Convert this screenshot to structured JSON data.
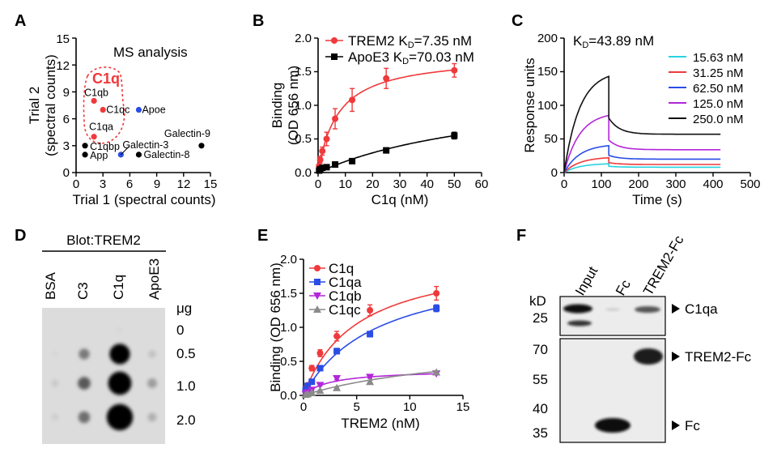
{
  "figure": {
    "panel_labels": [
      "A",
      "B",
      "C",
      "D",
      "E",
      "F"
    ]
  },
  "chart_data": [
    {
      "panel": "A",
      "type": "scatter",
      "title": "MS analysis",
      "xlabel": "Trial 1 (spectral counts)",
      "ylabel_line1": "Trial 2",
      "ylabel_line2": "(spectral counts)",
      "xlim": [
        0,
        15
      ],
      "ylim": [
        0,
        15
      ],
      "xticks": [
        "0",
        "3",
        "6",
        "9",
        "12",
        "15"
      ],
      "yticks": [
        "0",
        "3",
        "6",
        "9",
        "12",
        "15"
      ],
      "highlight_label": "C1q",
      "points": [
        {
          "label": "C1qb",
          "x": 2,
          "y": 8,
          "color": "#f0393b"
        },
        {
          "label": "C1qc",
          "x": 3,
          "y": 7,
          "color": "#f0393b"
        },
        {
          "label": "C1qa",
          "x": 2,
          "y": 4,
          "color": "#f0393b"
        },
        {
          "label": "Apoe",
          "x": 7,
          "y": 7,
          "color": "#2a4de6"
        },
        {
          "label": "Galectin-3",
          "x": 5,
          "y": 2,
          "color": "#2a4de6"
        },
        {
          "label": "C1qbp",
          "x": 1,
          "y": 3,
          "color": "#000000"
        },
        {
          "label": "App",
          "x": 1,
          "y": 2,
          "color": "#000000"
        },
        {
          "label": "Galectin-8",
          "x": 7,
          "y": 2,
          "color": "#000000"
        },
        {
          "label": "Galectin-9",
          "x": 14,
          "y": 3,
          "color": "#000000"
        }
      ]
    },
    {
      "panel": "B",
      "type": "line",
      "xlabel": "C1q (nM)",
      "ylabel_line1": "Binding",
      "ylabel_line2": "(OD 656 nm)",
      "xlim": [
        0,
        60
      ],
      "ylim": [
        0,
        2.0
      ],
      "xticks": [
        "0",
        "10",
        "20",
        "30",
        "40",
        "50",
        "60"
      ],
      "yticks": [
        "0.0",
        "0.5",
        "1.0",
        "1.5",
        "2.0"
      ],
      "series": [
        {
          "name": "TREM2",
          "kd_text": "K",
          "kd_sub": "D",
          "kd_value": "=7.35 nM",
          "color": "#f0393b",
          "marker": "circle",
          "x": [
            0.39,
            0.78,
            1.56,
            3.13,
            6.25,
            12.5,
            25,
            50
          ],
          "y": [
            0.1,
            0.19,
            0.32,
            0.5,
            0.8,
            1.08,
            1.4,
            1.52
          ],
          "err": [
            0.03,
            0.05,
            0.06,
            0.1,
            0.15,
            0.17,
            0.15,
            0.1
          ],
          "bmax": 1.75,
          "kd": 7.35
        },
        {
          "name": "ApoE3",
          "kd_text": "K",
          "kd_sub": "D",
          "kd_value": "=70.03 nM",
          "color": "#000000",
          "marker": "square",
          "x": [
            0.39,
            0.78,
            1.56,
            3.13,
            6.25,
            12.5,
            25,
            50
          ],
          "y": [
            0.03,
            0.05,
            0.07,
            0.08,
            0.12,
            0.17,
            0.33,
            0.55
          ],
          "err": [
            0.01,
            0.01,
            0.01,
            0.01,
            0.02,
            0.02,
            0.03,
            0.05
          ],
          "bmax": 1.32,
          "kd": 70.03
        }
      ]
    },
    {
      "panel": "C",
      "type": "line",
      "annotation_k": "K",
      "annotation_sub": "D",
      "annotation_value": "=43.89 nM",
      "xlabel": "Time (s)",
      "ylabel": "Response units",
      "xlim": [
        0,
        500
      ],
      "ylim": [
        0,
        200
      ],
      "xticks": [
        "0",
        "100",
        "200",
        "300",
        "400",
        "500"
      ],
      "yticks": [
        "0",
        "50",
        "100",
        "150",
        "200"
      ],
      "assoc_end": 120,
      "t_end": 420,
      "series": [
        {
          "name": "15.63 nM",
          "color": "#27d3e0",
          "peak": 13,
          "end": 8
        },
        {
          "name": "31.25 nM",
          "color": "#f0393b",
          "peak": 22,
          "end": 12
        },
        {
          "name": "62.50 nM",
          "color": "#2a4de6",
          "peak": 40,
          "end": 20
        },
        {
          "name": "125.0 nM",
          "color": "#b326d9",
          "peak": 85,
          "end": 34
        },
        {
          "name": "250.0 nM",
          "color": "#111111",
          "peak": 143,
          "end": 57
        }
      ]
    },
    {
      "panel": "D",
      "type": "blot",
      "header": "Blot",
      "header_colon": ":",
      "header_target": "TREM2",
      "columns": [
        "BSA",
        "C3",
        "C1q",
        "ApoE3"
      ],
      "unit": "μg",
      "rows": [
        "0",
        "0.5",
        "1.0",
        "2.0"
      ],
      "intensity": [
        [
          0.0,
          0.0,
          0.02,
          0.0
        ],
        [
          0.03,
          0.45,
          0.98,
          0.12
        ],
        [
          0.08,
          0.6,
          1.0,
          0.28
        ],
        [
          0.06,
          0.5,
          1.0,
          0.2
        ]
      ],
      "sizes": [
        [
          0,
          0,
          0.4,
          0
        ],
        [
          0.3,
          0.55,
          1.05,
          0.4
        ],
        [
          0.4,
          0.65,
          1.2,
          0.5
        ],
        [
          0.4,
          0.6,
          1.35,
          0.45
        ]
      ]
    },
    {
      "panel": "E",
      "type": "line",
      "xlabel": "TREM2 (nM)",
      "ylabel": "Binding (OD 656 nm)",
      "xlim": [
        0,
        15
      ],
      "ylim": [
        0,
        2.0
      ],
      "xticks": [
        "0",
        "5",
        "10",
        "15"
      ],
      "yticks": [
        "0.0",
        "0.5",
        "1.0",
        "1.5",
        "2.0"
      ],
      "series": [
        {
          "name": "C1q",
          "color": "#f0393b",
          "marker": "circle",
          "x": [
            0.2,
            0.39,
            0.78,
            1.56,
            3.13,
            6.25,
            12.5
          ],
          "y": [
            0.1,
            0.15,
            0.4,
            0.62,
            0.87,
            1.25,
            1.5
          ],
          "err": [
            0.02,
            0.02,
            0.04,
            0.05,
            0.07,
            0.08,
            0.1
          ],
          "bmax": 2.1,
          "kd": 5.0
        },
        {
          "name": "C1qa",
          "color": "#2a4de6",
          "marker": "square",
          "x": [
            0.2,
            0.39,
            0.78,
            1.56,
            3.13,
            6.25,
            12.5
          ],
          "y": [
            0.08,
            0.14,
            0.2,
            0.4,
            0.65,
            0.9,
            1.28
          ],
          "err": [
            0.01,
            0.01,
            0.02,
            0.03,
            0.04,
            0.04,
            0.05
          ],
          "bmax": 2.0,
          "kd": 7.0
        },
        {
          "name": "C1qb",
          "color": "#b326d9",
          "marker": "triangle-down",
          "x": [
            0.2,
            0.39,
            0.78,
            1.56,
            3.13,
            6.25,
            12.5
          ],
          "y": [
            0.02,
            0.04,
            0.08,
            0.15,
            0.25,
            0.27,
            0.32
          ],
          "err": [
            0.01,
            0.01,
            0.01,
            0.01,
            0.02,
            0.02,
            0.02
          ],
          "bmax": 0.38,
          "kd": 2.5
        },
        {
          "name": "C1qc",
          "color": "#8a8a8a",
          "marker": "triangle-up",
          "x": [
            0.2,
            0.39,
            0.78,
            1.56,
            3.13,
            6.25,
            12.5
          ],
          "y": [
            0.01,
            0.02,
            0.04,
            0.07,
            0.11,
            0.2,
            0.34
          ],
          "err": [
            0.01,
            0.01,
            0.01,
            0.01,
            0.01,
            0.02,
            0.02
          ],
          "bmax": 0.8,
          "kd": 16.0
        }
      ]
    },
    {
      "panel": "F",
      "type": "blot",
      "lanes": [
        "Input",
        "Fc",
        "TREM2-Fc"
      ],
      "kd_label": "kD",
      "top_markers": [
        "25"
      ],
      "bottom_markers": [
        "70",
        "55",
        "40",
        "35"
      ],
      "bands": [
        "C1qa",
        "TREM2-Fc",
        "Fc"
      ]
    }
  ]
}
